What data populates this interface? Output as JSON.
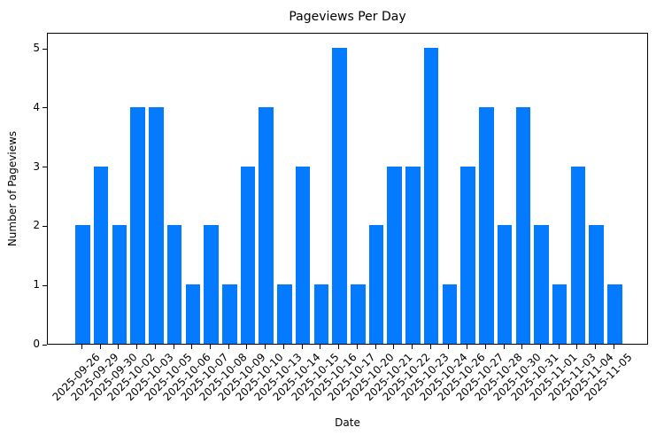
{
  "chart_data": {
    "type": "bar",
    "title": "Pageviews Per Day",
    "xlabel": "Date",
    "ylabel": "Number of Pageviews",
    "categories": [
      "2025-09-26",
      "2025-09-29",
      "2025-09-30",
      "2025-10-02",
      "2025-10-03",
      "2025-10-05",
      "2025-10-06",
      "2025-10-07",
      "2025-10-08",
      "2025-10-09",
      "2025-10-10",
      "2025-10-13",
      "2025-10-14",
      "2025-10-15",
      "2025-10-16",
      "2025-10-17",
      "2025-10-20",
      "2025-10-21",
      "2025-10-22",
      "2025-10-23",
      "2025-10-24",
      "2025-10-26",
      "2025-10-27",
      "2025-10-28",
      "2025-10-30",
      "2025-10-31",
      "2025-11-01",
      "2025-11-03",
      "2025-11-04",
      "2025-11-05"
    ],
    "values": [
      2,
      3,
      2,
      4,
      4,
      2,
      1,
      2,
      1,
      3,
      4,
      1,
      3,
      1,
      5,
      1,
      2,
      3,
      3,
      5,
      1,
      3,
      4,
      2,
      4,
      2,
      1,
      3,
      2,
      1
    ],
    "yticks": [
      0,
      1,
      2,
      3,
      4,
      5
    ],
    "ylim": [
      0,
      5.27
    ],
    "grid": false,
    "legend": null,
    "bar_color": "#047aff"
  }
}
